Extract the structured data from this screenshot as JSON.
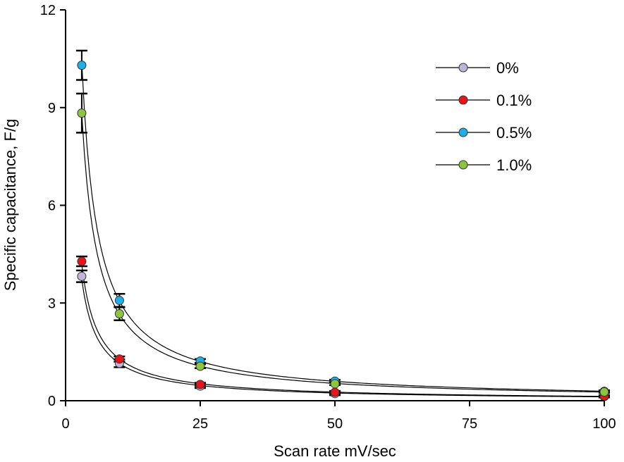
{
  "chart_data": {
    "type": "scatter",
    "xlabel": "Scan rate mV/sec",
    "ylabel": "Specific capacitance, F/g",
    "xlim": [
      0,
      100
    ],
    "ylim": [
      0,
      12
    ],
    "x_ticks": [
      "0",
      "25",
      "50",
      "75",
      "100"
    ],
    "y_ticks": [
      "0",
      "3",
      "6",
      "9",
      "12"
    ],
    "grid": false,
    "legend_position": "top-right",
    "series": [
      {
        "name": "0%",
        "color": "#c2b3d9",
        "points": [
          {
            "x": 3,
            "y": 3.82,
            "err": 0.18
          },
          {
            "x": 10,
            "y": 1.15,
            "err": 0.12
          },
          {
            "x": 25,
            "y": 0.45,
            "err": 0.06
          },
          {
            "x": 50,
            "y": 0.22,
            "err": 0.05
          },
          {
            "x": 100,
            "y": 0.13,
            "err": 0.03
          }
        ]
      },
      {
        "name": "0.1%",
        "color": "#e8141a",
        "points": [
          {
            "x": 3,
            "y": 4.28,
            "err": 0.15
          },
          {
            "x": 10,
            "y": 1.28,
            "err": 0.08
          },
          {
            "x": 25,
            "y": 0.5,
            "err": 0.05
          },
          {
            "x": 50,
            "y": 0.26,
            "err": 0.04
          },
          {
            "x": 100,
            "y": 0.14,
            "err": 0.03
          }
        ]
      },
      {
        "name": "0.5%",
        "color": "#1eaee8",
        "points": [
          {
            "x": 3,
            "y": 10.3,
            "err": 0.45
          },
          {
            "x": 10,
            "y": 3.08,
            "err": 0.2
          },
          {
            "x": 25,
            "y": 1.22,
            "err": 0.06
          },
          {
            "x": 50,
            "y": 0.6,
            "err": 0.04
          },
          {
            "x": 100,
            "y": 0.29,
            "err": 0.03
          }
        ]
      },
      {
        "name": "1.0%",
        "color": "#8cc63f",
        "points": [
          {
            "x": 3,
            "y": 8.83,
            "err": 0.6
          },
          {
            "x": 10,
            "y": 2.67,
            "err": 0.2
          },
          {
            "x": 25,
            "y": 1.06,
            "err": 0.06
          },
          {
            "x": 50,
            "y": 0.52,
            "err": 0.04
          },
          {
            "x": 100,
            "y": 0.27,
            "err": 0.03
          }
        ]
      }
    ]
  }
}
